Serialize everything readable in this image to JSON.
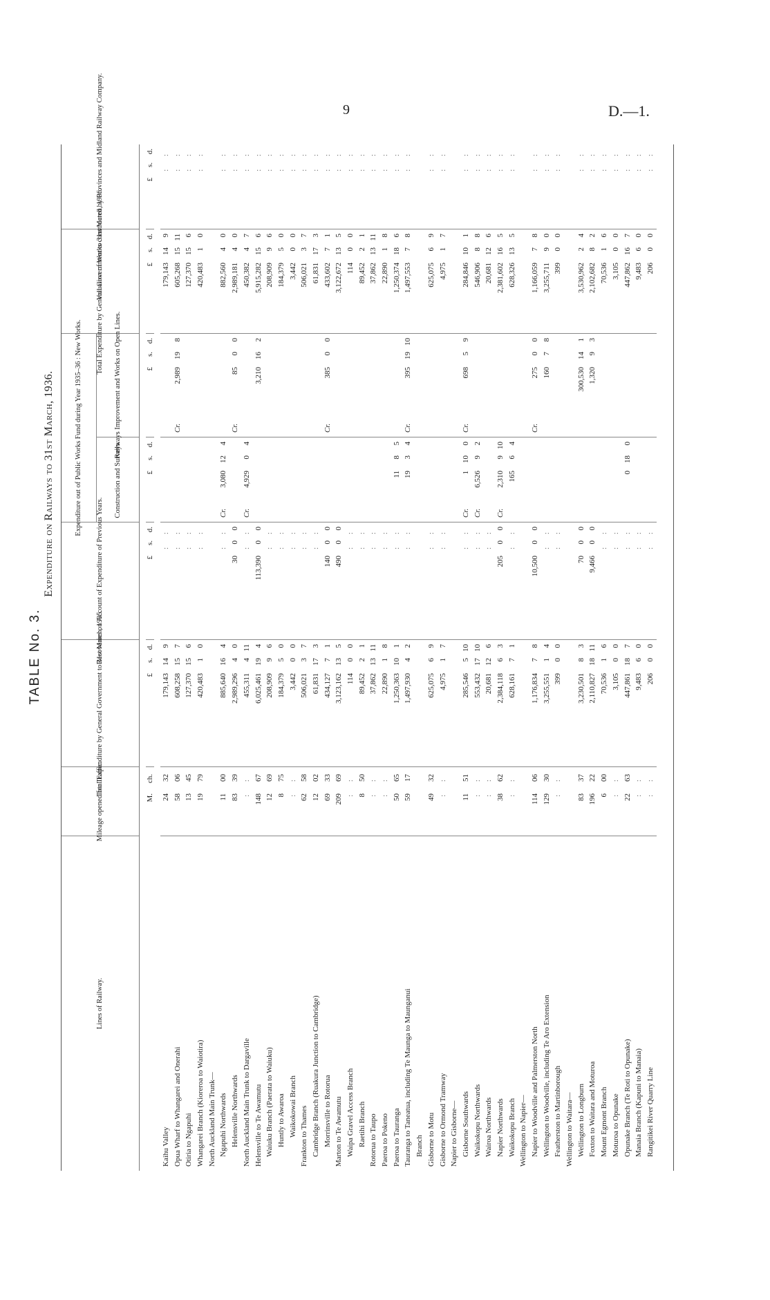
{
  "page": {
    "number": "9",
    "ref": "D.—1."
  },
  "title": "TABLE No. 3.",
  "subtitle": "Expenditure on Railways to 31st March, 1936.",
  "headers": {
    "name": "Lines of Railway.",
    "mileage": "Mileage opened for Traffic.",
    "prev": "Total Expenditure by General Government to 31st March, 1935.",
    "rec": "Recoveries on Account of Expenditure of Previous Years.",
    "fund": "Expenditure out of Public Works Fund during Year 1935–36 : New Works.",
    "con": "Construction and Surveys.",
    "imp": "Railways Improvement and Works on Open Lines.",
    "tot": "Total Expenditure by General Government to 31st March, 1936.",
    "val": "Valuation of Works constructed by Provinces and Midland Railway Company."
  },
  "units": {
    "m": "M.",
    "ch": "ch.",
    "l": "£",
    "s": "s.",
    "d": "d."
  },
  "rows": [
    {
      "name": "Kaihu Valley",
      "indent": 0,
      "mil": [
        "24",
        "32"
      ],
      "prev": [
        "179,143",
        "14",
        "9"
      ],
      "tot": [
        "179,143",
        "14",
        "9"
      ]
    },
    {
      "name": "Opua Wharf to Whangarei and Onerahi",
      "indent": 0,
      "mil": [
        "58",
        "06"
      ],
      "prev": [
        "608,258",
        "15",
        "7"
      ],
      "imp": {
        "cr": "Cr.",
        "v": [
          "2,989",
          "19",
          "8"
        ]
      },
      "tot": [
        "605,268",
        "15",
        "11"
      ]
    },
    {
      "name": "Otiria to Ngapuhi",
      "indent": 0,
      "mil": [
        "13",
        "45"
      ],
      "prev": [
        "127,370",
        "15",
        "6"
      ],
      "tot": [
        "127,370",
        "15",
        "6"
      ]
    },
    {
      "name": "Whangarei Branch (Kioreroa to Waiotira)",
      "indent": 0,
      "mil": [
        "19",
        "79"
      ],
      "prev": [
        "420,483",
        "1",
        "0"
      ],
      "tot": [
        "420,483",
        "1",
        "0"
      ]
    },
    {
      "name": "North Auckland Main Trunk—",
      "indent": 0,
      "heading": true
    },
    {
      "name": "Ngapuhi Northwards",
      "indent": 1,
      "mil": [
        "11",
        "00"
      ],
      "prev": [
        "885,640",
        "16",
        "4"
      ],
      "con": {
        "cr": "Cr.",
        "v": [
          "3,080",
          "12",
          "4"
        ]
      },
      "tot": [
        "882,560",
        "4",
        "0"
      ]
    },
    {
      "name": "Helensville Northwards",
      "indent": 2,
      "mil": [
        "83",
        "39"
      ],
      "prev": [
        "2,989,296",
        "4",
        "0"
      ],
      "rec": {
        "v": [
          "30",
          "0",
          "0"
        ]
      },
      "imp": {
        "cr": "Cr.",
        "v": [
          "85",
          "0",
          "0"
        ]
      },
      "tot": [
        "2,989,181",
        "4",
        "0"
      ]
    },
    {
      "name": "North Auckland Main Trunk to Dargaville",
      "indent": 0,
      "prev": [
        "455,311",
        "4",
        "11"
      ],
      "con": {
        "cr": "Cr.",
        "v": [
          "4,929",
          "0",
          "4"
        ]
      },
      "tot": [
        "450,382",
        "4",
        "7"
      ]
    },
    {
      "name": "Helensville to Te Awamutu",
      "indent": 0,
      "mil": [
        "148",
        "67"
      ],
      "prev": [
        "6,025,461",
        "19",
        "4"
      ],
      "rec": {
        "v": [
          "113,390",
          "0",
          "0"
        ]
      },
      "imp": {
        "v": [
          "3,210",
          "16",
          "2"
        ]
      },
      "tot": [
        "5,915,282",
        "15",
        "6"
      ]
    },
    {
      "name": "Waiuku Branch (Paerata to Waiuku)",
      "indent": 1,
      "mil": [
        "12",
        "69"
      ],
      "prev": [
        "208,909",
        "9",
        "6"
      ],
      "tot": [
        "208,909",
        "9",
        "6"
      ]
    },
    {
      "name": "Huntly to Awaroa",
      "indent": 2,
      "mil": [
        "8",
        "75"
      ],
      "prev": [
        "184,379",
        "5",
        "0"
      ],
      "tot": [
        "184,379",
        "5",
        "0"
      ]
    },
    {
      "name": "Waikokowai Branch",
      "indent": 3,
      "prev": [
        "3,442",
        "0",
        "0"
      ],
      "tot": [
        "3,442",
        "0",
        "0"
      ]
    },
    {
      "name": "Frankton to Thames",
      "indent": 0,
      "mil": [
        "62",
        "58"
      ],
      "prev": [
        "506,021",
        "3",
        "7"
      ],
      "tot": [
        "506,021",
        "3",
        "7"
      ]
    },
    {
      "name": "Cambridge Branch (Ruakura Junction to Cambridge)",
      "indent": 1,
      "mil": [
        "12",
        "02"
      ],
      "prev": [
        "61,831",
        "17",
        "3"
      ],
      "tot": [
        "61,831",
        "17",
        "3"
      ]
    },
    {
      "name": "Morrinsville to Rotorua",
      "indent": 2,
      "mil": [
        "69",
        "33"
      ],
      "prev": [
        "434,127",
        "7",
        "1"
      ],
      "rec": {
        "v": [
          "140",
          "0",
          "0"
        ]
      },
      "imp": {
        "cr": "Cr.",
        "v": [
          "385",
          "0",
          "0"
        ]
      },
      "tot": [
        "433,602",
        "7",
        "1"
      ]
    },
    {
      "name": "Marton to Te Awamutu",
      "indent": 0,
      "mil": [
        "209",
        "69"
      ],
      "prev": [
        "3,123,162",
        "13",
        "5"
      ],
      "rec": {
        "v": [
          "490",
          "0",
          "0"
        ]
      },
      "tot": [
        "3,122,672",
        "13",
        "5"
      ]
    },
    {
      "name": "Waipa Gravel Access Branch",
      "indent": 1,
      "prev": [
        "114",
        "0",
        "0"
      ],
      "tot": [
        "114",
        "0",
        "0"
      ]
    },
    {
      "name": "Raetihi Branch",
      "indent": 2,
      "mil": [
        "8",
        "50"
      ],
      "prev": [
        "89,452",
        "2",
        "1"
      ],
      "tot": [
        "89,452",
        "2",
        "1"
      ]
    },
    {
      "name": "Rotorua to Taupo",
      "indent": 0,
      "prev": [
        "37,862",
        "13",
        "11"
      ],
      "tot": [
        "37,862",
        "13",
        "11"
      ]
    },
    {
      "name": "Paeroa to Pokeno",
      "indent": 0,
      "prev": [
        "22,890",
        "1",
        "8"
      ],
      "tot": [
        "22,890",
        "1",
        "8"
      ]
    },
    {
      "name": "Paeroa to Tauranga",
      "indent": 0,
      "mil": [
        "50",
        "65"
      ],
      "prev": [
        "1,250,363",
        "10",
        "1"
      ],
      "con": {
        "v": [
          "11",
          "8",
          "5"
        ]
      },
      "tot": [
        "1,250,374",
        "18",
        "6"
      ]
    },
    {
      "name": "Tauranga to Taneatua, including Te Maunga to Maunganui",
      "indent": 0,
      "mil": [
        "59",
        "17"
      ],
      "prev": [
        "1,497,930",
        "4",
        "2"
      ],
      "con": {
        "v": [
          "19",
          "3",
          "4"
        ]
      },
      "imp": {
        "cr": "Cr.",
        "v": [
          "395",
          "19",
          "10"
        ]
      },
      "tot": [
        "1,497,553",
        "7",
        "8"
      ]
    },
    {
      "name": "Branch",
      "indent": 1,
      "heading": true
    },
    {
      "name": "Gisborne to Motu",
      "indent": 0,
      "mil": [
        "49",
        "32"
      ],
      "prev": [
        "625,075",
        "6",
        "9"
      ],
      "tot": [
        "625,075",
        "6",
        "9"
      ]
    },
    {
      "name": "Gisborne to Ormond Tramway",
      "indent": 0,
      "prev": [
        "4,975",
        "1",
        "7"
      ],
      "tot": [
        "4,975",
        "1",
        "7"
      ]
    },
    {
      "name": "Napier to Gisborne—",
      "indent": 0,
      "heading": true
    },
    {
      "name": "Gisborne Southwards",
      "indent": 1,
      "mil": [
        "11",
        "51"
      ],
      "prev": [
        "285,546",
        "5",
        "10"
      ],
      "con": {
        "cr": "Cr.",
        "v": [
          "1",
          "10",
          "0"
        ]
      },
      "imp": {
        "cr": "Cr.",
        "v": [
          "698",
          "5",
          "9"
        ]
      },
      "tot": [
        "284,846",
        "10",
        "1"
      ]
    },
    {
      "name": "Waikokopu Northwards",
      "indent": 1,
      "prev": [
        "553,432",
        "17",
        "10"
      ],
      "con": {
        "cr": "Cr.",
        "v": [
          "6,526",
          "9",
          "2"
        ]
      },
      "tot": [
        "546,906",
        "8",
        "8"
      ]
    },
    {
      "name": "Wairoa Northwards",
      "indent": 1,
      "prev": [
        "20,681",
        "12",
        "6"
      ],
      "tot": [
        "20,681",
        "12",
        "6"
      ]
    },
    {
      "name": "Napier Northwards",
      "indent": 1,
      "mil": [
        "38",
        "62"
      ],
      "prev": [
        "2,384,118",
        "6",
        "3"
      ],
      "rec": {
        "v": [
          "205",
          "0",
          "0"
        ]
      },
      "con": {
        "cr": "Cr.",
        "v": [
          "2,310",
          "9",
          "10"
        ]
      },
      "tot": [
        "2,381,602",
        "16",
        "5"
      ]
    },
    {
      "name": "Waikokopu Branch",
      "indent": 1,
      "prev": [
        "628,161",
        "7",
        "1"
      ],
      "con": {
        "v": [
          "165",
          "6",
          "4"
        ]
      },
      "tot": [
        "628,326",
        "13",
        "5"
      ]
    },
    {
      "name": "Wellington to Napier—",
      "indent": 0,
      "heading": true
    },
    {
      "name": "Napier to Woodville and Palmerston North",
      "indent": 1,
      "mil": [
        "114",
        "06"
      ],
      "prev": [
        "1,176,834",
        "7",
        "8"
      ],
      "rec": {
        "v": [
          "10,500",
          "0",
          "0"
        ]
      },
      "imp": {
        "cr": "Cr.",
        "v": [
          "275",
          "0",
          "0"
        ]
      },
      "tot": [
        "1,166,059",
        "7",
        "8"
      ]
    },
    {
      "name": "Wellington to Woodville, including Te Aro Extension",
      "indent": 1,
      "mil": [
        "129",
        "30"
      ],
      "prev": [
        "3,255,551",
        "1",
        "4"
      ],
      "imp": {
        "v": [
          "160",
          "7",
          "8"
        ]
      },
      "tot": [
        "3,255,711",
        "9",
        "0"
      ]
    },
    {
      "name": "Featherston to Martinborough",
      "indent": 1,
      "prev": [
        "399",
        "0",
        "0"
      ],
      "tot": [
        "399",
        "0",
        "0"
      ]
    },
    {
      "name": "Wellington to Waitara—",
      "indent": 0,
      "heading": true
    },
    {
      "name": "Wellington to Longburn",
      "indent": 1,
      "mil": [
        "83",
        "37"
      ],
      "prev": [
        "3,230,501",
        "8",
        "3"
      ],
      "rec": {
        "v": [
          "70",
          "0",
          "0"
        ]
      },
      "imp": {
        "v": [
          "300,530",
          "14",
          "1"
        ]
      },
      "tot": [
        "3,530,962",
        "2",
        "4"
      ]
    },
    {
      "name": "Foxton to Waitara and Moturoa",
      "indent": 1,
      "mil": [
        "196",
        "22"
      ],
      "prev": [
        "2,110,827",
        "18",
        "11"
      ],
      "rec": {
        "v": [
          "9,466",
          "0",
          "0"
        ]
      },
      "imp": {
        "v": [
          "1,320",
          "9",
          "3"
        ]
      },
      "tot": [
        "2,102,682",
        "8",
        "2"
      ]
    },
    {
      "name": "Mount Egmont Branch",
      "indent": 1,
      "mil": [
        "6",
        "00"
      ],
      "prev": [
        "70,536",
        "1",
        "6"
      ],
      "tot": [
        "70,536",
        "1",
        "6"
      ]
    },
    {
      "name": "Moturoa to Opunake",
      "indent": 1,
      "prev": [
        "3,105",
        "0",
        "0"
      ],
      "tot": [
        "3,105",
        "0",
        "0"
      ]
    },
    {
      "name": "Opunake Branch (Te Roti to Opunake)",
      "indent": 1,
      "mil": [
        "22",
        "63"
      ],
      "prev": [
        "447,861",
        "18",
        "7"
      ],
      "con": {
        "v": [
          "0",
          "18",
          "0"
        ]
      },
      "tot": [
        "447,862",
        "16",
        "7"
      ]
    },
    {
      "name": "Manaia Branch (Kapuni to Manaia)",
      "indent": 1,
      "prev": [
        "9,483",
        "6",
        "0"
      ],
      "tot": [
        "9,483",
        "6",
        "0"
      ]
    },
    {
      "name": "Rangitikei River Quarry Line",
      "indent": 1,
      "prev": [
        "206",
        "0",
        "0"
      ],
      "tot": [
        "206",
        "0",
        "0"
      ]
    }
  ]
}
